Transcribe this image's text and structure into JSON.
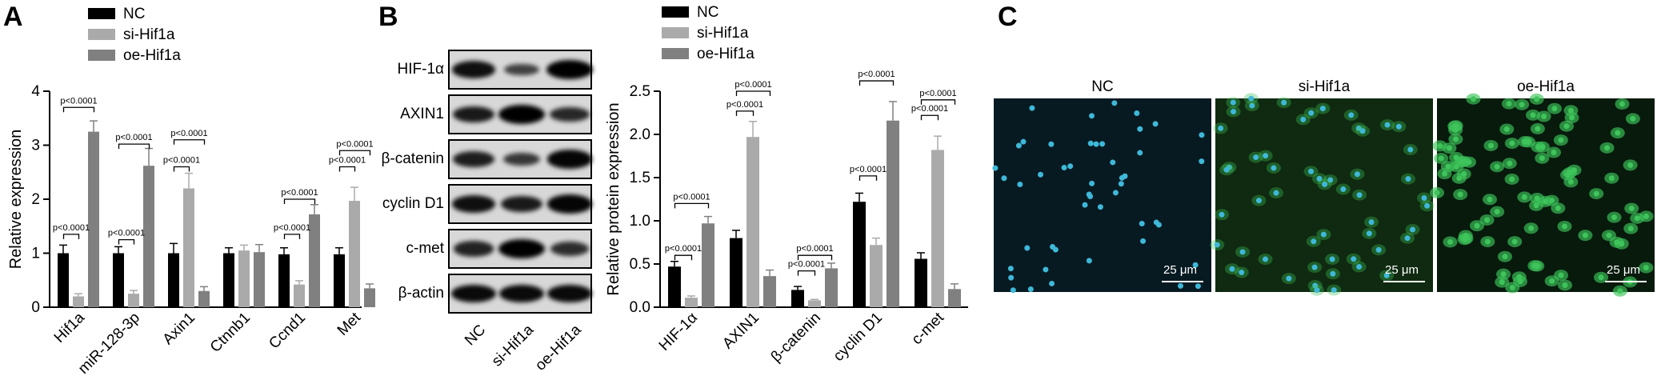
{
  "panels": {
    "a_letter": "A",
    "b_letter": "B",
    "c_letter": "C"
  },
  "chart_data": [
    {
      "type": "bar",
      "panel": "A",
      "categories": [
        "Hif1a",
        "miR-128-3p",
        "Axin1",
        "Ctnnb1",
        "Ccnd1",
        "Met"
      ],
      "ylabel": "Relative expression",
      "xlabel": "",
      "ylim": [
        0,
        4
      ],
      "yticks": [
        0,
        1,
        2,
        3,
        4
      ],
      "legend_position": "top-left",
      "series": [
        {
          "name": "NC",
          "color": "#000000",
          "values": [
            1.0,
            1.0,
            1.0,
            1.0,
            0.98,
            0.98
          ],
          "errors": [
            0.15,
            0.12,
            0.18,
            0.1,
            0.12,
            0.12
          ]
        },
        {
          "name": "si-Hif1a",
          "color": "#aaaaaa",
          "values": [
            0.2,
            0.25,
            2.2,
            1.05,
            0.42,
            1.97
          ],
          "errors": [
            0.05,
            0.06,
            0.28,
            0.1,
            0.07,
            0.25
          ]
        },
        {
          "name": "oe-Hif1a",
          "color": "#808080",
          "values": [
            3.25,
            2.62,
            0.3,
            1.02,
            1.72,
            0.35
          ],
          "errors": [
            0.2,
            0.32,
            0.08,
            0.14,
            0.18,
            0.08
          ]
        }
      ],
      "annotations": [
        "p<0.0001",
        "p<0.0001",
        "p<0.0001",
        "p<0.0001",
        "p<0.0001",
        "p<0.0001",
        "p<0.0001",
        "p<0.0001",
        "p<0.0001",
        "p<0.0001"
      ]
    },
    {
      "type": "bar",
      "panel": "B",
      "categories": [
        "HIF-1α",
        "AXIN1",
        "β-catenin",
        "cyclin D1",
        "c-met"
      ],
      "ylabel": "Relative protein expression",
      "xlabel": "",
      "ylim": [
        0,
        2.5
      ],
      "yticks": [
        0.0,
        0.5,
        1.0,
        1.5,
        2.0,
        2.5
      ],
      "legend_position": "top-left",
      "series": [
        {
          "name": "NC",
          "color": "#000000",
          "values": [
            0.47,
            0.8,
            0.2,
            1.22,
            0.56
          ],
          "errors": [
            0.06,
            0.09,
            0.04,
            0.1,
            0.07
          ]
        },
        {
          "name": "si-Hif1a",
          "color": "#aaaaaa",
          "values": [
            0.11,
            1.97,
            0.08,
            0.72,
            1.82
          ],
          "errors": [
            0.02,
            0.18,
            0.01,
            0.08,
            0.16
          ]
        },
        {
          "name": "oe-Hif1a",
          "color": "#808080",
          "values": [
            0.97,
            0.36,
            0.45,
            2.16,
            0.21
          ],
          "errors": [
            0.08,
            0.07,
            0.06,
            0.22,
            0.06
          ]
        }
      ],
      "annotations": [
        "p<0.0001",
        "p<0.0001",
        "p<0.0001",
        "p<0.0001",
        "p<0.0001",
        "p<0.0001",
        "p<0.0001",
        "p<0.0001",
        "p<0.0001",
        "p<0.0001"
      ]
    }
  ],
  "blot": {
    "proteins": [
      "HIF-1α",
      "AXIN1",
      "β-catenin",
      "cyclin D1",
      "c-met",
      "β-actin"
    ],
    "lanes": [
      "NC",
      "si-Hif1a",
      "oe-Hif1a"
    ],
    "band_intensity": [
      [
        0.85,
        0.35,
        1.0
      ],
      [
        0.75,
        1.0,
        0.6
      ],
      [
        0.7,
        0.45,
        0.95
      ],
      [
        0.85,
        0.75,
        0.95
      ],
      [
        0.65,
        1.0,
        0.55
      ],
      [
        0.9,
        0.9,
        0.9
      ]
    ]
  },
  "micrographs": {
    "titles": [
      "NC",
      "si-Hif1a",
      "oe-Hif1a"
    ],
    "scale_label": "25 μm",
    "bg_colors": [
      "#071a22",
      "#0f2a10",
      "#071a0c"
    ],
    "cell_color": "#3fb8d8",
    "green_color": "#3ec45a"
  }
}
